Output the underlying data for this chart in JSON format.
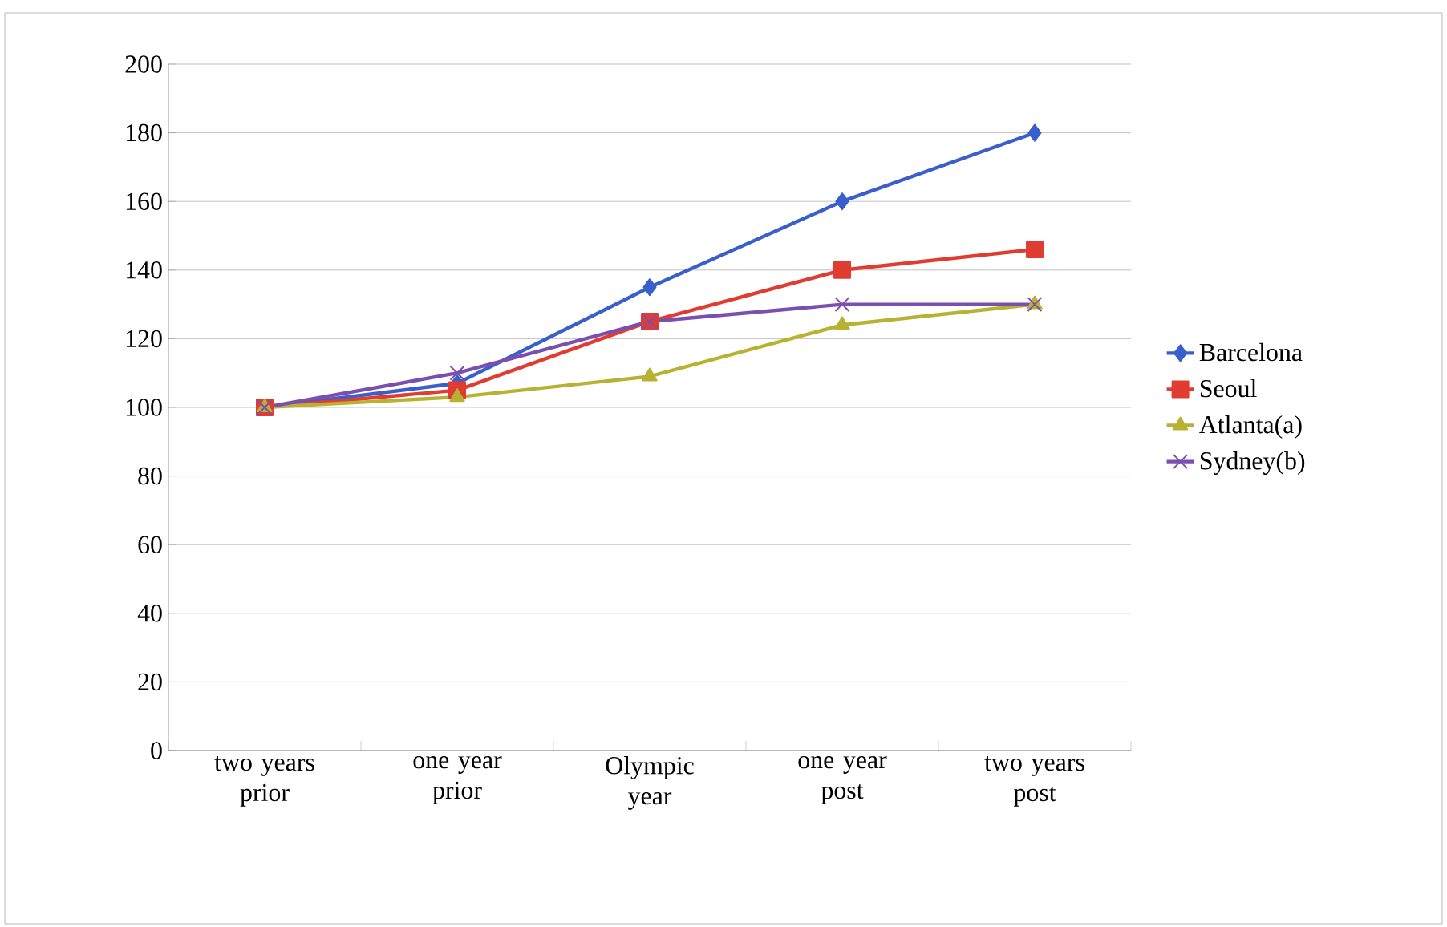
{
  "chart_data": {
    "type": "line",
    "categories": [
      "two years prior",
      "one year prior",
      "Olympic year",
      "one year post",
      "two years post"
    ],
    "series": [
      {
        "name": "Barcelona",
        "color": "#3a5fcd",
        "marker": "diamond",
        "values": [
          100,
          107,
          135,
          160,
          180
        ]
      },
      {
        "name": "Seoul",
        "color": "#e03c31",
        "marker": "square",
        "values": [
          100,
          105,
          125,
          140,
          146
        ]
      },
      {
        "name": "Atlanta(a)",
        "color": "#b8b232",
        "marker": "triangle",
        "values": [
          100,
          103,
          109,
          124,
          130
        ]
      },
      {
        "name": "Sydney(b)",
        "color": "#7b4fb0",
        "marker": "cross",
        "values": [
          100,
          110,
          125,
          130,
          130
        ]
      }
    ],
    "ylim": [
      0,
      200
    ],
    "yticks": [
      0,
      20,
      40,
      60,
      80,
      100,
      120,
      140,
      160,
      180,
      200
    ],
    "grid": "y",
    "legend": "right"
  }
}
